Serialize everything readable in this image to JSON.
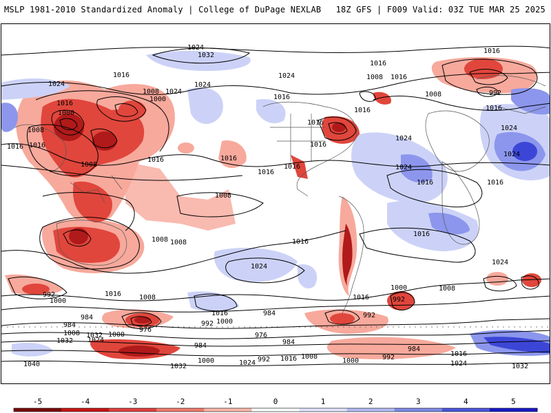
{
  "header": {
    "title_left": "MSLP 1981-2010 Standardized Anomaly | College of DuPage NEXLAB",
    "title_right": "18Z GFS | F009 Valid: 03Z TUE MAR 25 2025"
  },
  "map": {
    "contour_labels": [
      "1024",
      "1032",
      "1016",
      "1024",
      "1024",
      "1008",
      "1016",
      "1016",
      "1016",
      "1000",
      "1008",
      "1024",
      "1016",
      "1008",
      "1000",
      "1024",
      "1016",
      "1016",
      "1008",
      "1016",
      "992",
      "1016",
      "1016",
      "1008",
      "1016",
      "1024",
      "1016",
      "1016",
      "1024",
      "1016",
      "1016",
      "1008",
      "1016",
      "1024",
      "1008",
      "1016",
      "1016",
      "1016",
      "1024",
      "1024",
      "1008",
      "1000",
      "992",
      "984",
      "992",
      "1016",
      "1016",
      "1008",
      "1000",
      "1000",
      "984",
      "976",
      "992",
      "1000",
      "1024",
      "1032",
      "1016",
      "992",
      "984",
      "1008",
      "976",
      "984",
      "984",
      "992",
      "1032",
      "984",
      "1040",
      "1032",
      "1024",
      "1016",
      "1008",
      "1000",
      "992",
      "1016",
      "1024",
      "1032",
      "1000",
      "1024",
      "1016",
      "1008"
    ],
    "colors": {
      "strong_negative": "#b01a1a",
      "negative": "#e0463c",
      "weak_negative": "#f7a99c",
      "weak_positive": "#ccd2f7",
      "positive": "#8c96ec",
      "strong_positive": "#3c46d6"
    }
  },
  "colorbar": {
    "ticks": [
      "-5",
      "-4",
      "-3",
      "-2",
      "-1",
      "0",
      "1",
      "2",
      "3",
      "4",
      "5"
    ],
    "colors": [
      "#7a0a0a",
      "#c81414",
      "#e04040",
      "#f07a6e",
      "#fbb7ab",
      "#ffffff",
      "#dfe3ff",
      "#b4bcf4",
      "#7f8ae8",
      "#4b55dc",
      "#1a1ac8"
    ]
  }
}
